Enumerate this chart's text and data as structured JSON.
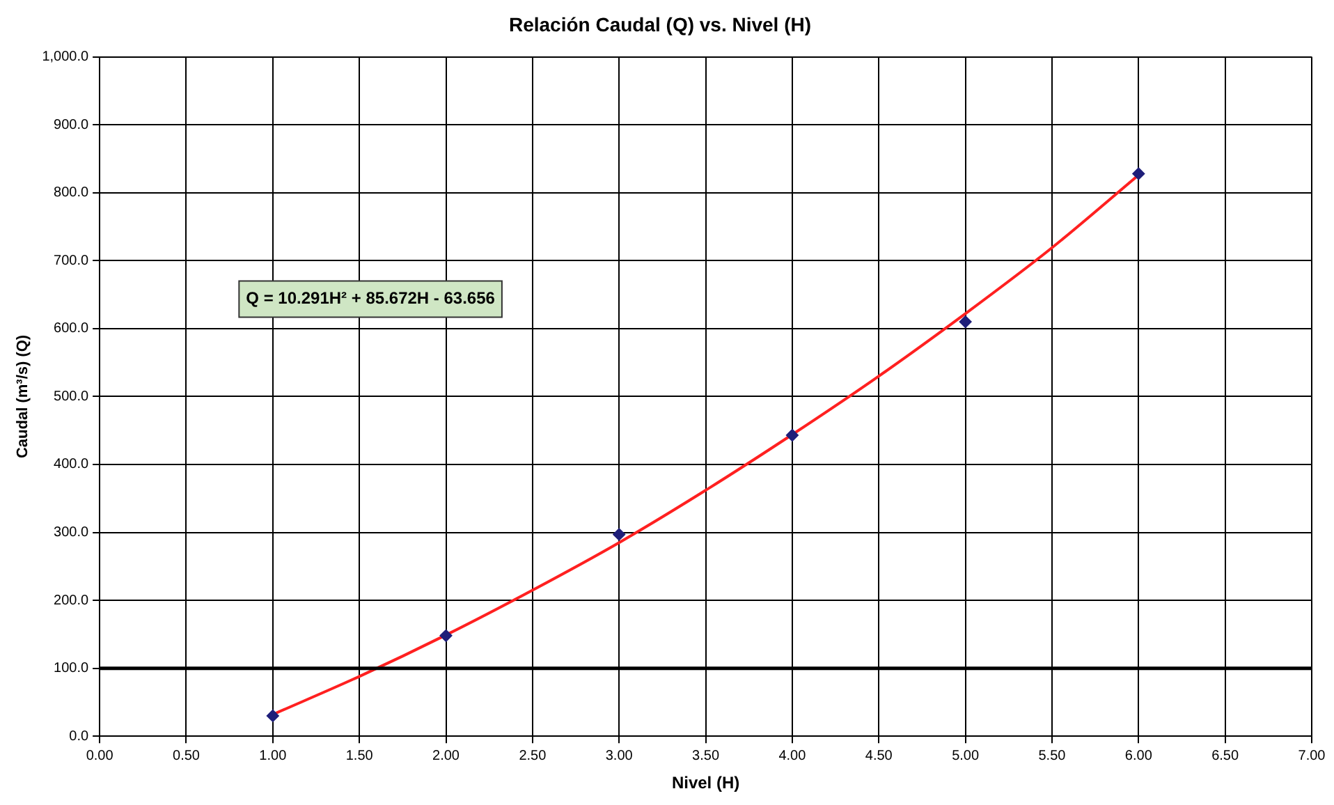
{
  "chart_data": {
    "type": "scatter",
    "title": "Relación Caudal (Q) vs. Nivel (H)",
    "xlabel": "Nivel (H)",
    "ylabel": "Caudal (m³/s) (Q)",
    "annotations": [
      "Q = 10.291H² + 85.672H - 63.656"
    ],
    "x": [
      1,
      2,
      3,
      4,
      5,
      6
    ],
    "series": [
      {
        "color": "#1f1f7a",
        "marker": "diamond",
        "values": [
          30,
          148,
          297,
          443,
          610,
          828
        ]
      },
      {
        "type": "line",
        "color": "#ff2020",
        "marker": "none",
        "line_style": "solid",
        "x": [
          1,
          1.5,
          2,
          2.5,
          3,
          3.5,
          4,
          4.5,
          5,
          5.5,
          6
        ],
        "values": [
          32,
          88,
          149,
          215,
          285,
          362,
          444,
          530,
          622,
          719,
          826
        ]
      }
    ],
    "xlim": [
      0,
      7
    ],
    "ylim": [
      0,
      1000
    ],
    "xticks": [
      {
        "value": 0,
        "label": "0.00"
      },
      {
        "value": 0.5,
        "label": "0.50"
      },
      {
        "value": 1,
        "label": "1.00"
      },
      {
        "value": 1.5,
        "label": "1.50"
      },
      {
        "value": 2,
        "label": "2.00"
      },
      {
        "value": 2.5,
        "label": "2.50"
      },
      {
        "value": 3,
        "label": "3.00"
      },
      {
        "value": 3.5,
        "label": "3.50"
      },
      {
        "value": 4,
        "label": "4.00"
      },
      {
        "value": 4.5,
        "label": "4.50"
      },
      {
        "value": 5,
        "label": "5.00"
      },
      {
        "value": 5.5,
        "label": "5.50"
      },
      {
        "value": 6,
        "label": "6.00"
      },
      {
        "value": 6.5,
        "label": "6.50"
      },
      {
        "value": 7,
        "label": "7.00"
      }
    ],
    "yticks": [
      {
        "value": 0,
        "label": "0.0"
      },
      {
        "value": 100,
        "label": "100.0"
      },
      {
        "value": 200,
        "label": "200.0"
      },
      {
        "value": 300,
        "label": "300.0"
      },
      {
        "value": 400,
        "label": "400.0"
      },
      {
        "value": 500,
        "label": "500.0"
      },
      {
        "value": 600,
        "label": "600.0"
      },
      {
        "value": 700,
        "label": "700.0"
      },
      {
        "value": 800,
        "label": "800.0"
      },
      {
        "value": 900,
        "label": "900.0"
      },
      {
        "value": 1000,
        "label": "1,000.0"
      }
    ],
    "ref_lines": [
      {
        "axis": "y",
        "value": 100,
        "color": "#000000",
        "line_style": "solid"
      }
    ],
    "grid": true,
    "legend": false
  }
}
